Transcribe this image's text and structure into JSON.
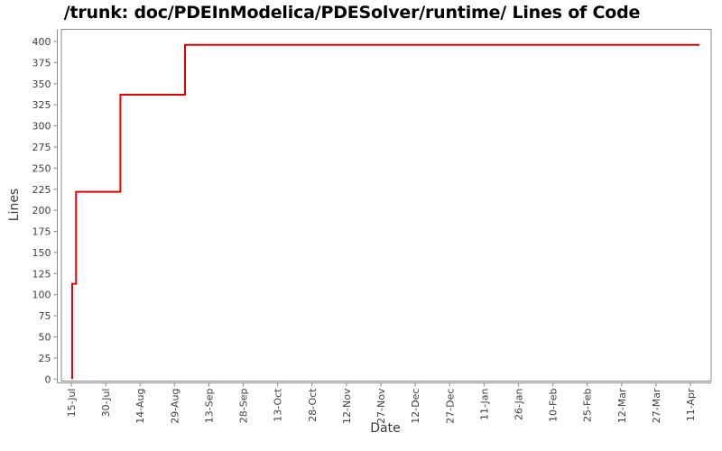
{
  "chart_data": {
    "type": "line",
    "subtype": "step",
    "title": "/trunk: doc/PDEInModelica/PDESolver/runtime/ Lines of Code",
    "xlabel": "Date",
    "ylabel": "Lines",
    "grid": false,
    "legend": "none",
    "line_color": "#e60000",
    "axis_color": "#8a8a8a",
    "tick_label_color": "#404040",
    "ylim": [
      0,
      400
    ],
    "y_tick_step": 25,
    "y_ticks": [
      0,
      25,
      50,
      75,
      100,
      125,
      150,
      175,
      200,
      225,
      250,
      275,
      300,
      325,
      350,
      375,
      400
    ],
    "x_ticks": [
      {
        "label": "15-Jul",
        "day": 0
      },
      {
        "label": "30-Jul",
        "day": 15
      },
      {
        "label": "14-Aug",
        "day": 30
      },
      {
        "label": "29-Aug",
        "day": 45
      },
      {
        "label": "13-Sep",
        "day": 60
      },
      {
        "label": "28-Sep",
        "day": 75
      },
      {
        "label": "13-Oct",
        "day": 90
      },
      {
        "label": "28-Oct",
        "day": 105
      },
      {
        "label": "12-Nov",
        "day": 120
      },
      {
        "label": "27-Nov",
        "day": 135
      },
      {
        "label": "12-Dec",
        "day": 150
      },
      {
        "label": "27-Dec",
        "day": 165
      },
      {
        "label": "11-Jan",
        "day": 180
      },
      {
        "label": "26-Jan",
        "day": 195
      },
      {
        "label": "10-Feb",
        "day": 210
      },
      {
        "label": "25-Feb",
        "day": 225
      },
      {
        "label": "12-Mar",
        "day": 240
      },
      {
        "label": "27-Mar",
        "day": 255
      },
      {
        "label": "11-Apr",
        "day": 270
      }
    ],
    "series": [
      {
        "name": "Lines of Code",
        "points": [
          {
            "day": 0.4,
            "value": 0
          },
          {
            "day": 0.4,
            "value": 113
          },
          {
            "day": 2.1,
            "value": 113
          },
          {
            "day": 2.1,
            "value": 222
          },
          {
            "day": 21.4,
            "value": 222
          },
          {
            "day": 21.4,
            "value": 337
          },
          {
            "day": 49.6,
            "value": 337
          },
          {
            "day": 49.6,
            "value": 396
          },
          {
            "day": 274,
            "value": 396
          }
        ]
      }
    ],
    "change_events": [
      {
        "date": "15-Jul",
        "lines": 113
      },
      {
        "date": "17-Jul",
        "lines": 222
      },
      {
        "date": "05-Aug",
        "lines": 337
      },
      {
        "date": "03-Sep",
        "lines": 396
      }
    ]
  }
}
